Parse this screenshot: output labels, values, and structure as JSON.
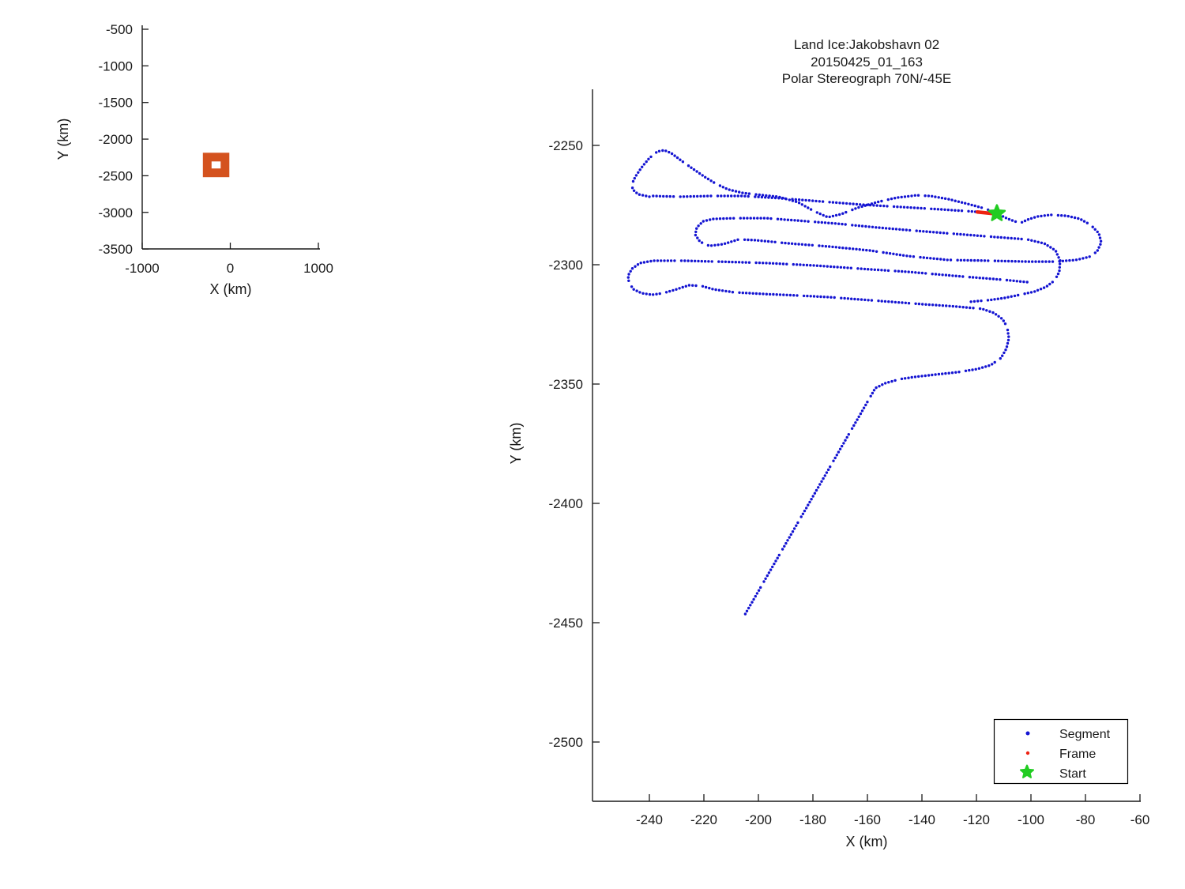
{
  "figure": {
    "background": "#ffffff"
  },
  "colors": {
    "segment": "#1414d2",
    "frame": "#ee2211",
    "start": "#22cc22",
    "overview_track": "#d4521e",
    "axis": "#1a1a1a",
    "legend_border": "#000000"
  },
  "legend": {
    "items": [
      {
        "label": "Segment",
        "marker": "dot",
        "color": "#1414d2"
      },
      {
        "label": "Frame",
        "marker": "dot",
        "color": "#ee2211"
      },
      {
        "label": "Start",
        "marker": "pentagram",
        "color": "#22cc22"
      }
    ]
  },
  "chart_data": [
    {
      "id": "overview",
      "type": "scatter",
      "xlabel": "X (km)",
      "ylabel": "Y (km)",
      "xticks": [
        -1000,
        0,
        1000
      ],
      "yticks": [
        -500,
        -1000,
        -1500,
        -2000,
        -2500,
        -3000,
        -3500
      ],
      "xlim": [
        -1000,
        1020
      ],
      "ylim": [
        -3500,
        -446
      ],
      "grid": false,
      "track_outline": {
        "x": [
          -262,
          -60
        ],
        "y": [
          -2460,
          -2245
        ],
        "color": "#d4521e",
        "stroke_px": 11
      }
    },
    {
      "id": "main",
      "type": "scatter",
      "title_lines": [
        "Land Ice:Jakobshavn 02",
        "20150425_01_163",
        "Polar Stereograph 70N/-45E"
      ],
      "xlabel": "X (km)",
      "ylabel": "Y (km)",
      "xticks": [
        -240,
        -220,
        -200,
        -180,
        -160,
        -140,
        -120,
        -100,
        -80,
        -60
      ],
      "yticks": [
        -2250,
        -2300,
        -2350,
        -2400,
        -2450,
        -2500
      ],
      "xlim": [
        -260.9,
        -60
      ],
      "ylim": [
        -2524.5,
        -2227.2
      ],
      "grid": false,
      "legend_position": "bottom-right",
      "series": [
        {
          "name": "Segment",
          "marker": "dot",
          "strands": [
            [
              [
                -240.0,
                -2271.5
              ],
              [
                -244.1,
                -2270.5
              ],
              [
                -246.1,
                -2268.5
              ],
              [
                -246.4,
                -2266.2
              ],
              [
                -245.2,
                -2263.2
              ],
              [
                -242.9,
                -2259.3
              ],
              [
                -240.0,
                -2255.3
              ],
              [
                -237.1,
                -2252.6
              ],
              [
                -234.5,
                -2252.0
              ],
              [
                -231.9,
                -2253.3
              ],
              [
                -228.4,
                -2256.3
              ],
              [
                -224.3,
                -2259.6
              ],
              [
                -219.7,
                -2263.2
              ],
              [
                -215.4,
                -2266.2
              ],
              [
                -211.0,
                -2268.5
              ],
              [
                -205.8,
                -2269.9
              ],
              [
                -201.4,
                -2270.5
              ],
              [
                -192.8,
                -2271.5
              ],
              [
                -185.5,
                -2273.8
              ],
              [
                -179.7,
                -2277.5
              ],
              [
                -174.5,
                -2280.1
              ],
              [
                -169.6,
                -2278.8
              ],
              [
                -163.8,
                -2276.2
              ],
              [
                -156.5,
                -2273.8
              ],
              [
                -149.3,
                -2271.9
              ],
              [
                -142.0,
                -2270.9
              ],
              [
                -136.8,
                -2271.2
              ],
              [
                -130.4,
                -2272.5
              ],
              [
                -123.2,
                -2274.5
              ],
              [
                -116.8,
                -2276.5
              ],
              [
                -112.5,
                -2278.5
              ]
            ],
            [
              [
                -238.6,
                -2271.2
              ],
              [
                -229.0,
                -2271.5
              ],
              [
                -217.4,
                -2271.2
              ],
              [
                -205.8,
                -2271.2
              ],
              [
                -191.3,
                -2272.2
              ],
              [
                -176.8,
                -2273.5
              ],
              [
                -162.3,
                -2274.8
              ],
              [
                -147.8,
                -2275.8
              ],
              [
                -133.3,
                -2276.8
              ],
              [
                -120.0,
                -2277.8
              ]
            ],
            [
              [
                -112.5,
                -2278.5
              ],
              [
                -109.0,
                -2280.5
              ],
              [
                -106.1,
                -2281.8
              ],
              [
                -103.8,
                -2282.5
              ],
              [
                -101.2,
                -2281.1
              ],
              [
                -97.7,
                -2279.8
              ],
              [
                -92.8,
                -2279.1
              ],
              [
                -87.0,
                -2279.5
              ],
              [
                -82.0,
                -2280.8
              ],
              [
                -78.0,
                -2283.4
              ],
              [
                -75.1,
                -2286.8
              ],
              [
                -74.2,
                -2290.7
              ],
              [
                -75.7,
                -2294.4
              ],
              [
                -78.6,
                -2296.7
              ],
              [
                -83.5,
                -2298.0
              ],
              [
                -91.3,
                -2298.7
              ],
              [
                -101.4,
                -2298.7
              ],
              [
                -115.9,
                -2298.3
              ],
              [
                -130.4,
                -2298.0
              ],
              [
                -144.9,
                -2296.4
              ],
              [
                -159.4,
                -2294.0
              ],
              [
                -173.9,
                -2292.4
              ],
              [
                -188.4,
                -2291.1
              ],
              [
                -201.4,
                -2289.7
              ],
              [
                -207.2,
                -2289.4
              ],
              [
                -213.0,
                -2291.4
              ],
              [
                -218.0,
                -2292.1
              ],
              [
                -221.4,
                -2290.4
              ],
              [
                -223.2,
                -2287.4
              ],
              [
                -222.6,
                -2284.4
              ],
              [
                -220.3,
                -2281.8
              ],
              [
                -216.5,
                -2280.8
              ],
              [
                -208.7,
                -2280.5
              ],
              [
                -197.1,
                -2280.5
              ],
              [
                -185.5,
                -2281.5
              ],
              [
                -171.0,
                -2282.8
              ],
              [
                -156.5,
                -2284.4
              ],
              [
                -142.0,
                -2285.8
              ],
              [
                -127.5,
                -2287.1
              ],
              [
                -113.0,
                -2288.4
              ],
              [
                -101.4,
                -2289.4
              ],
              [
                -95.1,
                -2291.1
              ],
              [
                -91.0,
                -2294.0
              ],
              [
                -89.3,
                -2298.3
              ],
              [
                -89.6,
                -2303.0
              ],
              [
                -91.3,
                -2306.6
              ],
              [
                -94.5,
                -2309.3
              ],
              [
                -98.8,
                -2311.3
              ],
              [
                -104.1,
                -2312.6
              ],
              [
                -109.6,
                -2313.9
              ],
              [
                -115.9,
                -2314.9
              ],
              [
                -123.2,
                -2315.6
              ]
            ],
            [
              [
                -101.4,
                -2307.3
              ],
              [
                -110.1,
                -2306.3
              ],
              [
                -124.6,
                -2305.0
              ],
              [
                -144.9,
                -2303.0
              ],
              [
                -162.3,
                -2301.7
              ],
              [
                -179.7,
                -2300.3
              ],
              [
                -197.1,
                -2299.3
              ],
              [
                -214.5,
                -2298.7
              ],
              [
                -229.0,
                -2298.3
              ],
              [
                -238.3,
                -2298.3
              ],
              [
                -243.5,
                -2299.3
              ],
              [
                -246.4,
                -2301.7
              ],
              [
                -247.8,
                -2304.6
              ],
              [
                -247.5,
                -2307.6
              ],
              [
                -245.8,
                -2310.3
              ],
              [
                -242.9,
                -2311.9
              ],
              [
                -239.1,
                -2312.6
              ],
              [
                -234.8,
                -2311.9
              ],
              [
                -230.1,
                -2310.3
              ],
              [
                -225.5,
                -2308.6
              ],
              [
                -220.9,
                -2308.9
              ],
              [
                -216.5,
                -2310.3
              ],
              [
                -208.7,
                -2311.6
              ],
              [
                -197.1,
                -2312.3
              ],
              [
                -185.5,
                -2312.9
              ],
              [
                -173.9,
                -2313.6
              ],
              [
                -162.3,
                -2314.6
              ],
              [
                -150.7,
                -2315.6
              ],
              [
                -139.1,
                -2316.6
              ],
              [
                -127.5,
                -2317.5
              ],
              [
                -117.9,
                -2318.5
              ],
              [
                -113.6,
                -2320.2
              ],
              [
                -110.4,
                -2322.8
              ],
              [
                -108.7,
                -2326.2
              ],
              [
                -108.1,
                -2330.8
              ],
              [
                -109.0,
                -2335.1
              ],
              [
                -111.0,
                -2339.1
              ],
              [
                -114.8,
                -2342.1
              ],
              [
                -119.7,
                -2343.7
              ],
              [
                -126.7,
                -2345.0
              ],
              [
                -134.8,
                -2346.0
              ],
              [
                -142.6,
                -2347.0
              ],
              [
                -148.4,
                -2348.0
              ],
              [
                -153.6,
                -2349.7
              ],
              [
                -157.1,
                -2351.7
              ],
              [
                -159.4,
                -2356.3
              ],
              [
                -205.8,
                -2448.3
              ]
            ]
          ]
        },
        {
          "name": "Frame",
          "marker": "line",
          "points": [
            [
              -119.7,
              -2277.9
            ],
            [
              -113.7,
              -2278.6
            ]
          ]
        },
        {
          "name": "Start",
          "marker": "pentagram",
          "point": [
            -112.5,
            -2278.5
          ]
        }
      ]
    }
  ]
}
